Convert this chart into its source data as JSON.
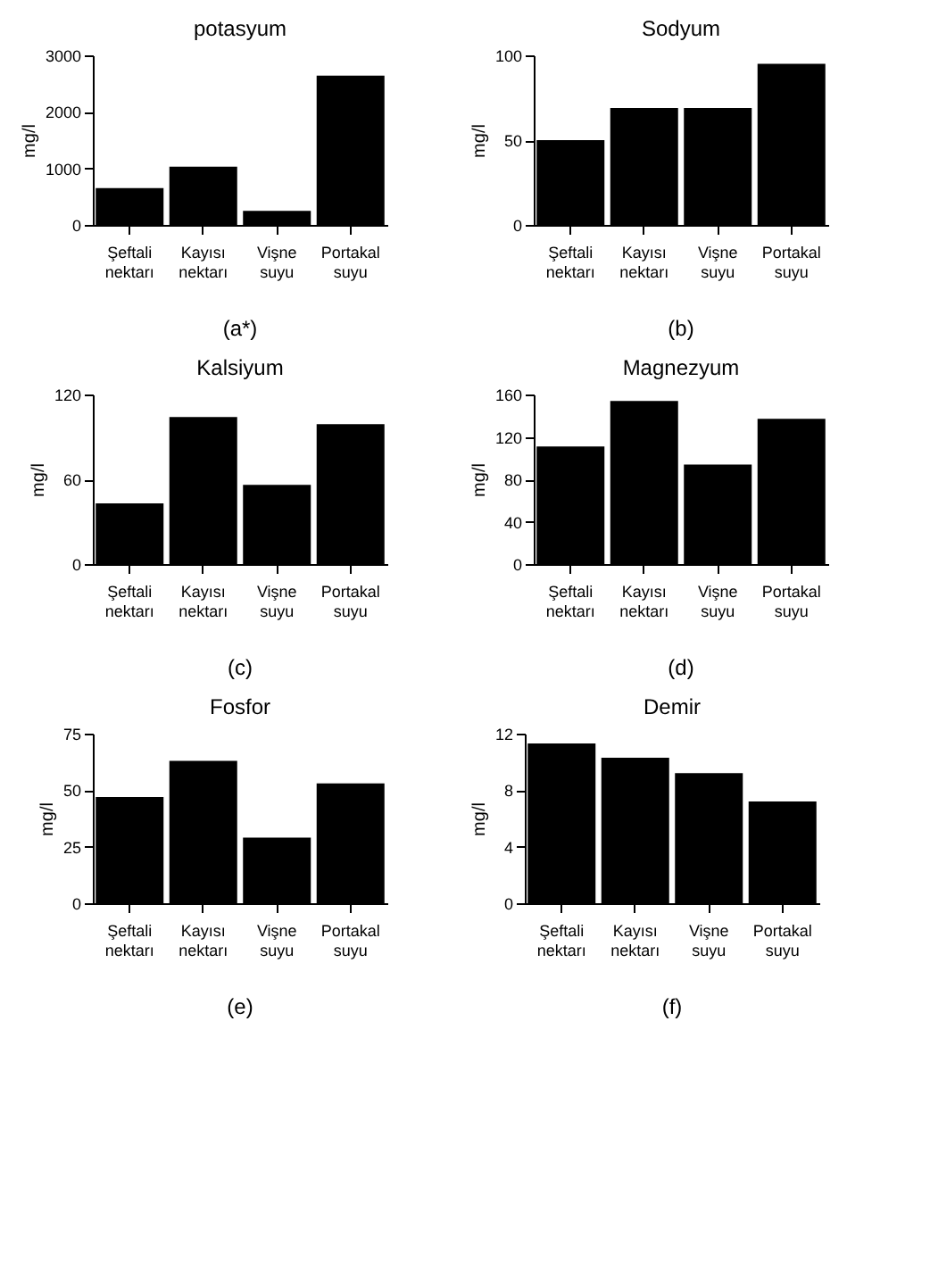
{
  "chart_data": [
    {
      "type": "bar",
      "title": "potasyum",
      "ylabel": "mg/l",
      "categories": [
        "Şeftali nektarı",
        "Kayısı nektarı",
        "Vişne suyu",
        "Portakal suyu"
      ],
      "values": [
        650,
        1030,
        250,
        2640
      ],
      "color": "#000000",
      "ylim": [
        0,
        3000
      ],
      "yticks": [
        0,
        1000,
        2000,
        3000
      ],
      "annotations": [
        "(a*)"
      ]
    },
    {
      "type": "bar",
      "title": "Sodyum",
      "ylabel": "mg/l",
      "categories": [
        "Şeftali nektarı",
        "Kayısı nektarı",
        "Vişne suyu",
        "Portakal suyu"
      ],
      "values": [
        50,
        69,
        69,
        95
      ],
      "color": "#000000",
      "ylim": [
        0,
        100
      ],
      "yticks": [
        0,
        50,
        100
      ],
      "annotations": [
        "(b)"
      ]
    },
    {
      "type": "bar",
      "title": "Kalsiyum",
      "ylabel": "mg/l",
      "categories": [
        "Şeftali nektarı",
        "Kayısı nektarı",
        "Vişne suyu",
        "Portakal suyu"
      ],
      "values": [
        43,
        104,
        56,
        99
      ],
      "color": "#000000",
      "ylim": [
        0,
        120
      ],
      "yticks": [
        0,
        60,
        120
      ],
      "annotations": [
        "(c)"
      ]
    },
    {
      "type": "bar",
      "title": "Magnezyum",
      "ylabel": "mg/l",
      "categories": [
        "Şeftali nektarı",
        "Kayısı nektarı",
        "Vişne suyu",
        "Portakal suyu"
      ],
      "values": [
        111,
        154,
        94,
        137
      ],
      "color": "#000000",
      "ylim": [
        0,
        160
      ],
      "yticks": [
        0,
        40,
        80,
        120,
        160
      ],
      "annotations": [
        "(d)"
      ]
    },
    {
      "type": "bar",
      "title": "Fosfor",
      "ylabel": "mg/l",
      "categories": [
        "Şeftali nektarı",
        "Kayısı nektarı",
        "Vişne suyu",
        "Portakal suyu"
      ],
      "values": [
        47,
        63,
        29,
        53
      ],
      "color": "#000000",
      "ylim": [
        0,
        75
      ],
      "yticks": [
        0,
        25,
        50,
        75
      ],
      "annotations": [
        "(e)"
      ]
    },
    {
      "type": "bar",
      "title": "Demir",
      "ylabel": "mg/l",
      "categories": [
        "Şeftali nektarı",
        "Kayısı nektarı",
        "Vişne suyu",
        "Portakal suyu"
      ],
      "values": [
        11.3,
        10.3,
        9.2,
        7.2
      ],
      "color": "#000000",
      "ylim": [
        0,
        12
      ],
      "yticks": [
        0,
        4,
        8,
        12
      ],
      "annotations": [
        "(f)"
      ]
    }
  ]
}
